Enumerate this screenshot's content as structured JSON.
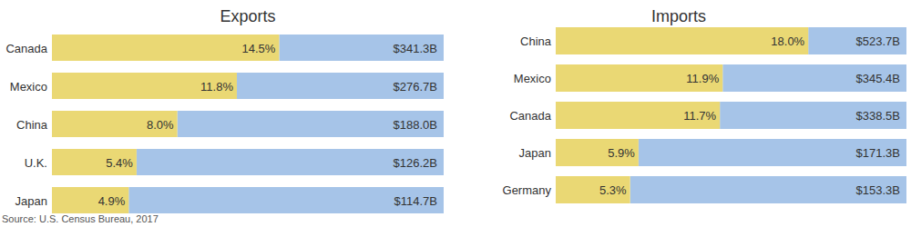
{
  "chart_data": [
    {
      "type": "bar",
      "orientation": "horizontal",
      "title": "Exports",
      "categories": [
        "Canada",
        "Mexico",
        "China",
        "U.K.",
        "Japan"
      ],
      "values": [
        14.5,
        11.8,
        8.0,
        5.4,
        4.9
      ],
      "value_labels": [
        "14.5%",
        "11.8%",
        "8.0%",
        "5.4%",
        "4.9%"
      ],
      "amounts": [
        341.3,
        276.7,
        188.0,
        126.2,
        114.7
      ],
      "amount_labels": [
        "$341.3B",
        "$276.7B",
        "$188.0B",
        "$126.2B",
        "$114.7B"
      ],
      "color": "#ead874",
      "xlim": [
        0,
        25
      ],
      "data_labels": true,
      "tick_labels": "y"
    },
    {
      "type": "bar",
      "orientation": "horizontal",
      "title": "Imports",
      "categories": [
        "China",
        "Mexico",
        "Canada",
        "Japan",
        "Germany"
      ],
      "values": [
        18.0,
        11.9,
        11.7,
        5.9,
        5.3
      ],
      "value_labels": [
        "18.0%",
        "11.9%",
        "11.7%",
        "5.9%",
        "5.3%"
      ],
      "amounts": [
        523.7,
        345.4,
        338.5,
        171.3,
        153.3
      ],
      "amount_labels": [
        "$523.7B",
        "$345.4B",
        "$338.5B",
        "$171.3B",
        "$153.3B"
      ],
      "color": "#ead874",
      "xlim": [
        0,
        25
      ],
      "data_labels": true,
      "tick_labels": "y"
    }
  ],
  "source": "Source: U.S. Census Bureau, 2017"
}
